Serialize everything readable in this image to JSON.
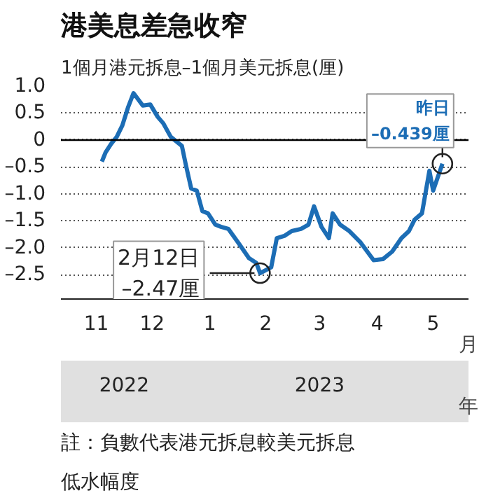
{
  "chart_data": {
    "type": "line",
    "title": "港美息差急收窄",
    "subtitle": "1個月港元拆息–1個月美元拆息(厘)",
    "x": [
      "2022-11-19",
      "2022-11-21",
      "2022-11-24",
      "2022-11-27",
      "2022-11-30",
      "2022-12-03",
      "2022-12-06",
      "2022-12-11",
      "2022-12-15",
      "2022-12-19",
      "2022-12-22",
      "2022-12-26",
      "2023-01-01",
      "2023-01-03",
      "2023-01-06",
      "2023-01-09",
      "2023-01-12",
      "2023-01-15",
      "2023-01-19",
      "2023-01-22",
      "2023-01-26",
      "2023-02-01",
      "2023-02-06",
      "2023-02-10",
      "2023-02-12",
      "2023-02-18",
      "2023-02-21",
      "2023-02-25",
      "2023-03-01",
      "2023-03-06",
      "2023-03-10",
      "2023-03-13",
      "2023-03-17",
      "2023-03-21",
      "2023-03-23",
      "2023-03-27",
      "2023-04-01",
      "2023-04-07",
      "2023-04-14",
      "2023-04-19",
      "2023-04-24",
      "2023-04-29",
      "2023-05-03",
      "2023-05-06",
      "2023-05-10",
      "2023-05-14",
      "2023-05-16",
      "2023-05-21"
    ],
    "series": [
      {
        "color": "#1c6db5",
        "values": [
          -0.4,
          -0.23,
          -0.07,
          0.06,
          0.27,
          0.6,
          0.87,
          0.64,
          0.66,
          0.43,
          0.31,
          0.06,
          -0.11,
          -0.44,
          -0.9,
          -0.94,
          -1.32,
          -1.36,
          -1.57,
          -1.61,
          -1.65,
          -1.94,
          -2.19,
          -2.28,
          -2.47,
          -2.36,
          -1.82,
          -1.78,
          -1.69,
          -1.65,
          -1.57,
          -1.23,
          -1.61,
          -1.82,
          -1.36,
          -1.57,
          -1.69,
          -1.9,
          -2.23,
          -2.21,
          -2.07,
          -1.82,
          -1.69,
          -1.48,
          -1.36,
          -0.57,
          -0.94,
          -0.439
        ]
      }
    ],
    "xlim": [
      "2022-10-28",
      "2023-06-04"
    ],
    "xticks": [
      {
        "value": "2022-11-16",
        "label": "11"
      },
      {
        "value": "2022-12-16",
        "label": "12"
      },
      {
        "value": "2023-01-16",
        "label": "1"
      },
      {
        "value": "2023-02-15",
        "label": "2"
      },
      {
        "value": "2023-03-16",
        "label": "3"
      },
      {
        "value": "2023-04-16",
        "label": "4"
      },
      {
        "value": "2023-05-16",
        "label": "5"
      }
    ],
    "xlabel": "月",
    "x2lim": [
      "2022-10-28",
      "2023-06-04"
    ],
    "x2ticks": [
      {
        "value": "2022-12-01",
        "label": "2022"
      },
      {
        "value": "2023-03-16",
        "label": "2023"
      }
    ],
    "x2label": "年",
    "ylim": [
      -2.95,
      1
    ],
    "yticks": [
      {
        "value": 1,
        "label": "1.0"
      },
      0.5,
      0,
      {
        "value": -0.5,
        "label": "–0.5"
      },
      {
        "value": -1,
        "label": "–1.0"
      },
      {
        "value": -1.5,
        "label": "–1.5"
      },
      {
        "value": -2,
        "label": "–2.0"
      },
      {
        "value": -2.5,
        "label": "–2.5"
      }
    ],
    "grid": "y",
    "line_style": "solid",
    "marker": "none",
    "ref_lines": [
      {
        "axis": "y",
        "value": 0,
        "label": null,
        "color": "#000000"
      }
    ],
    "annotations": [
      {
        "text": "2月12日\n–2.47厘",
        "x": "2023-02-12",
        "y": -2.47
      },
      {
        "text": "昨日\n–0.439厘",
        "x": "2023-05-21",
        "y": -0.439
      },
      "註：負數代表港元拆息較美元拆息",
      "低水幅度"
    ]
  }
}
